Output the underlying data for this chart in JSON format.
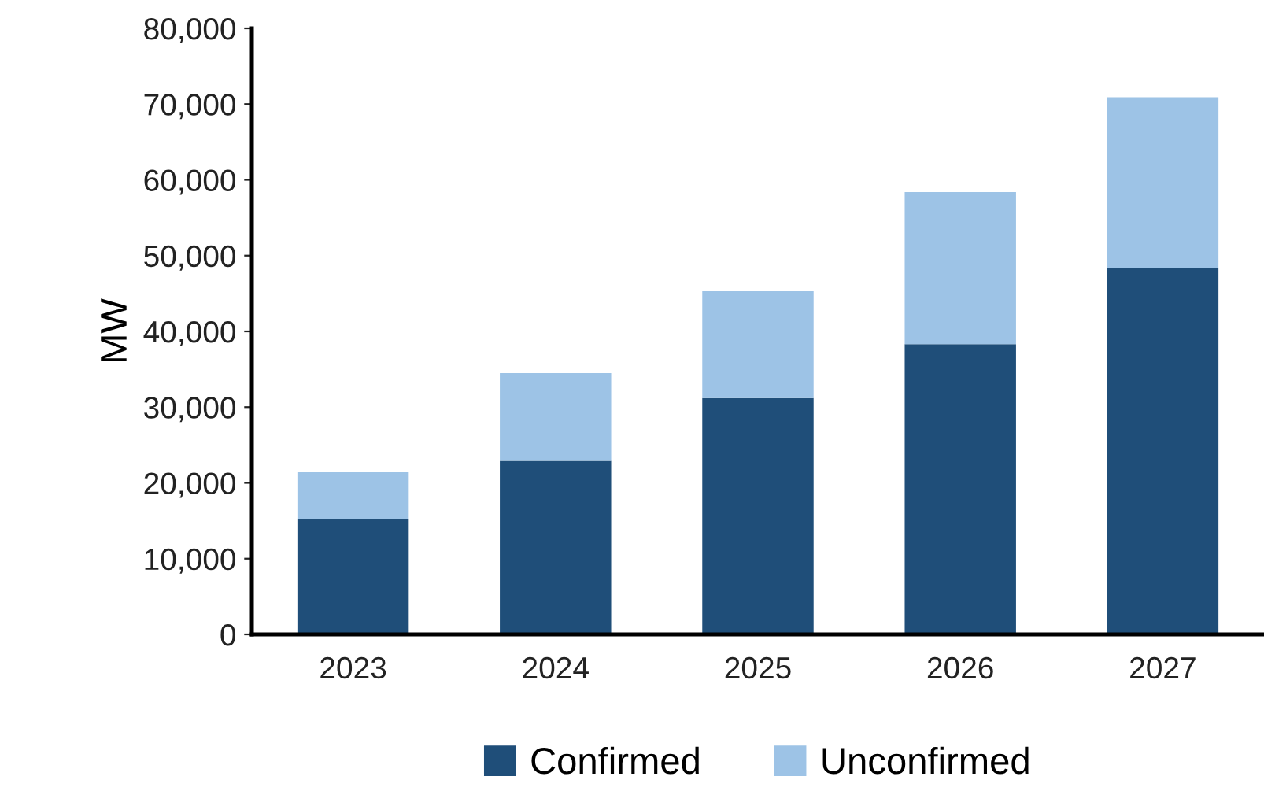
{
  "chart_data": {
    "type": "bar",
    "stacked": true,
    "ylabel": "MW",
    "categories": [
      "2023",
      "2024",
      "2025",
      "2026",
      "2027"
    ],
    "series": [
      {
        "name": "Confirmed",
        "color": "#1f4e79",
        "values": [
          15200,
          22900,
          31200,
          38300,
          48400
        ]
      },
      {
        "name": "Unconfirmed",
        "color": "#9dc3e6",
        "values": [
          6200,
          11600,
          14100,
          20100,
          22500
        ]
      }
    ],
    "ylim": [
      0,
      80000
    ],
    "yticks": [
      {
        "value": 0,
        "label": "0"
      },
      {
        "value": 10000,
        "label": "10,000"
      },
      {
        "value": 20000,
        "label": "20,000"
      },
      {
        "value": 30000,
        "label": "30,000"
      },
      {
        "value": 40000,
        "label": "40,000"
      },
      {
        "value": 50000,
        "label": "50,000"
      },
      {
        "value": 60000,
        "label": "60,000"
      },
      {
        "value": 70000,
        "label": "70,000"
      },
      {
        "value": 80000,
        "label": "80,000"
      }
    ],
    "grid": false,
    "legend": "bottom"
  }
}
